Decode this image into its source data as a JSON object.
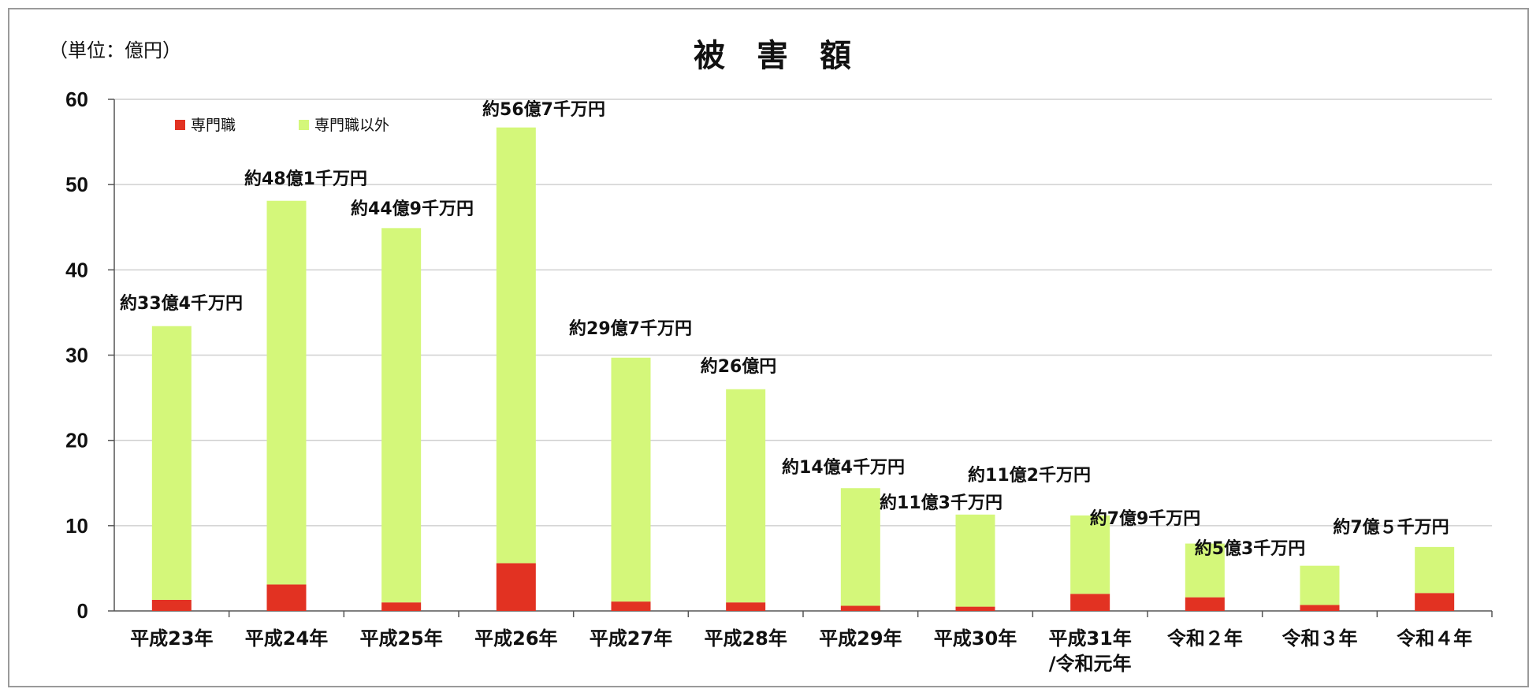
{
  "chart_data": {
    "type": "bar",
    "stacked": true,
    "title": "被　害　額",
    "unit_label": "（単位：億円）",
    "ylim": [
      0,
      60
    ],
    "yticks": [
      0,
      10,
      20,
      30,
      40,
      50,
      60
    ],
    "grid": true,
    "legend_position": "top-left",
    "categories": [
      [
        "平成23年"
      ],
      [
        "平成24年"
      ],
      [
        "平成25年"
      ],
      [
        "平成26年"
      ],
      [
        "平成27年"
      ],
      [
        "平成28年"
      ],
      [
        "平成29年"
      ],
      [
        "平成30年"
      ],
      [
        "平成31年",
        "/令和元年"
      ],
      [
        "令和２年"
      ],
      [
        "令和３年"
      ],
      [
        "令和４年"
      ]
    ],
    "series": [
      {
        "name": "専門職",
        "color": "#e23222",
        "values": [
          1.3,
          3.1,
          1.0,
          5.6,
          1.1,
          1.0,
          0.6,
          0.5,
          2.0,
          1.6,
          0.7,
          2.1
        ]
      },
      {
        "name": "専門職以外",
        "color": "#d4f77a",
        "values": [
          32.1,
          45.0,
          43.9,
          51.1,
          28.6,
          25.0,
          13.8,
          10.8,
          9.2,
          6.3,
          4.6,
          5.4
        ]
      }
    ],
    "totals": [
      33.4,
      48.1,
      44.9,
      56.7,
      29.7,
      26.0,
      14.4,
      11.3,
      11.2,
      7.9,
      5.3,
      7.5
    ],
    "data_labels": [
      "約33億4千万円",
      "約48億1千万円",
      "約44億9千万円",
      "約56億7千万円",
      "約29億7千万円",
      "約26億円",
      "約14億4千万円",
      "約11億3千万円",
      "約11億2千万円",
      "約7億9千万円",
      "約5億3千万円",
      "約7億５千万円"
    ]
  }
}
